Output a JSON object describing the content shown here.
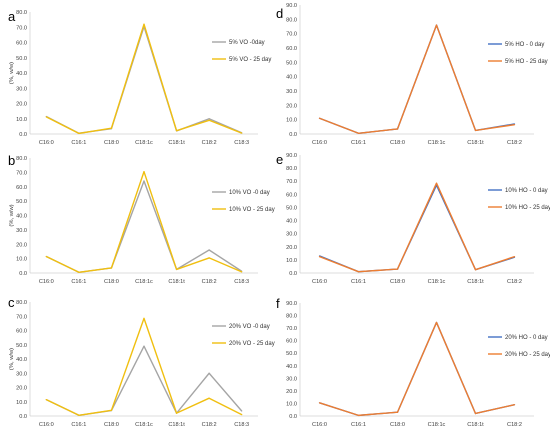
{
  "chart_data": [
    {
      "panel": "a",
      "type": "line",
      "ylabel": "(%, w/w)",
      "ylim": [
        0,
        80
      ],
      "ystep": 10,
      "grid": false,
      "legend_position": "right",
      "categories": [
        "C16:0",
        "C16:1",
        "C18:0",
        "C18:1c",
        "C18:1t",
        "C18:2",
        "C18:3"
      ],
      "series": [
        {
          "name": "5% VO -0day",
          "color": "#a5a5a5",
          "values": [
            11.5,
            0.5,
            3.5,
            70.5,
            2.0,
            10.0,
            0.8
          ]
        },
        {
          "name": "5% VO - 25 day",
          "color": "#f0bf10",
          "values": [
            11.2,
            0.4,
            3.8,
            72.0,
            2.2,
            9.0,
            0.6
          ]
        }
      ]
    },
    {
      "panel": "b",
      "type": "line",
      "ylabel": "(%, w/w)",
      "ylim": [
        0,
        80
      ],
      "ystep": 10,
      "grid": false,
      "legend_position": "right",
      "categories": [
        "C16:0",
        "C16:1",
        "C18:0",
        "C18:1c",
        "C18:1t",
        "C18:2",
        "C18:3"
      ],
      "series": [
        {
          "name": "10% VO -0 day",
          "color": "#a5a5a5",
          "values": [
            11.5,
            0.5,
            3.5,
            64.0,
            2.5,
            16.0,
            1.2
          ]
        },
        {
          "name": "10% VO - 25 day",
          "color": "#f0bf10",
          "values": [
            11.5,
            0.5,
            3.5,
            70.5,
            2.5,
            10.5,
            0.8
          ]
        }
      ]
    },
    {
      "panel": "c",
      "type": "line",
      "ylabel": "(%, w/w)",
      "ylim": [
        0,
        80
      ],
      "ystep": 10,
      "grid": false,
      "legend_position": "right",
      "categories": [
        "C16:0",
        "C16:1",
        "C18:0",
        "C18:1c",
        "C18:1t",
        "C18:2",
        "C18:3"
      ],
      "series": [
        {
          "name": "20% VO -0 day",
          "color": "#a5a5a5",
          "values": [
            11.5,
            0.5,
            3.8,
            49.0,
            2.0,
            30.0,
            3.5
          ]
        },
        {
          "name": "20% VO - 25 day",
          "color": "#f0bf10",
          "values": [
            11.5,
            0.5,
            4.0,
            68.5,
            2.0,
            12.5,
            1.0
          ]
        }
      ]
    },
    {
      "panel": "d",
      "type": "line",
      "ylabel": "",
      "ylim": [
        0,
        90
      ],
      "ystep": 10,
      "grid": false,
      "legend_position": "right",
      "categories": [
        "C16:0",
        "C16:1",
        "C18:0",
        "C18:1c",
        "C18:1t",
        "C18:2"
      ],
      "series": [
        {
          "name": "5% HO - 0 day",
          "color": "#4472c4",
          "values": [
            11.0,
            0.5,
            3.5,
            76.0,
            2.5,
            7.0
          ]
        },
        {
          "name": "5% HO - 25 day",
          "color": "#ed7d31",
          "values": [
            11.0,
            0.5,
            3.5,
            76.0,
            2.5,
            6.5
          ]
        }
      ]
    },
    {
      "panel": "e",
      "type": "line",
      "ylabel": "",
      "ylim": [
        0,
        90
      ],
      "ystep": 10,
      "grid": false,
      "legend_position": "right",
      "categories": [
        "C16:0",
        "C16:1",
        "C18:0",
        "C18:1c",
        "C18:1t",
        "C18:2"
      ],
      "series": [
        {
          "name": "10% HO - 0 day",
          "color": "#4472c4",
          "values": [
            13.0,
            1.0,
            3.0,
            67.0,
            2.5,
            12.0
          ]
        },
        {
          "name": "10% HO - 25 day",
          "color": "#ed7d31",
          "values": [
            12.5,
            1.0,
            3.0,
            68.5,
            2.5,
            12.5
          ]
        }
      ]
    },
    {
      "panel": "f",
      "type": "line",
      "ylabel": "",
      "ylim": [
        0,
        90
      ],
      "ystep": 10,
      "grid": false,
      "legend_position": "right",
      "categories": [
        "C16:0",
        "C16:1",
        "C18:0",
        "C18:1c",
        "C18:1t",
        "C18:2"
      ],
      "series": [
        {
          "name": "20% HO - 0 day",
          "color": "#4472c4",
          "values": [
            10.5,
            0.5,
            3.0,
            74.5,
            2.0,
            9.0
          ]
        },
        {
          "name": "20% HO - 25 day",
          "color": "#ed7d31",
          "values": [
            10.5,
            0.5,
            3.0,
            74.5,
            2.0,
            9.0
          ]
        }
      ]
    }
  ]
}
